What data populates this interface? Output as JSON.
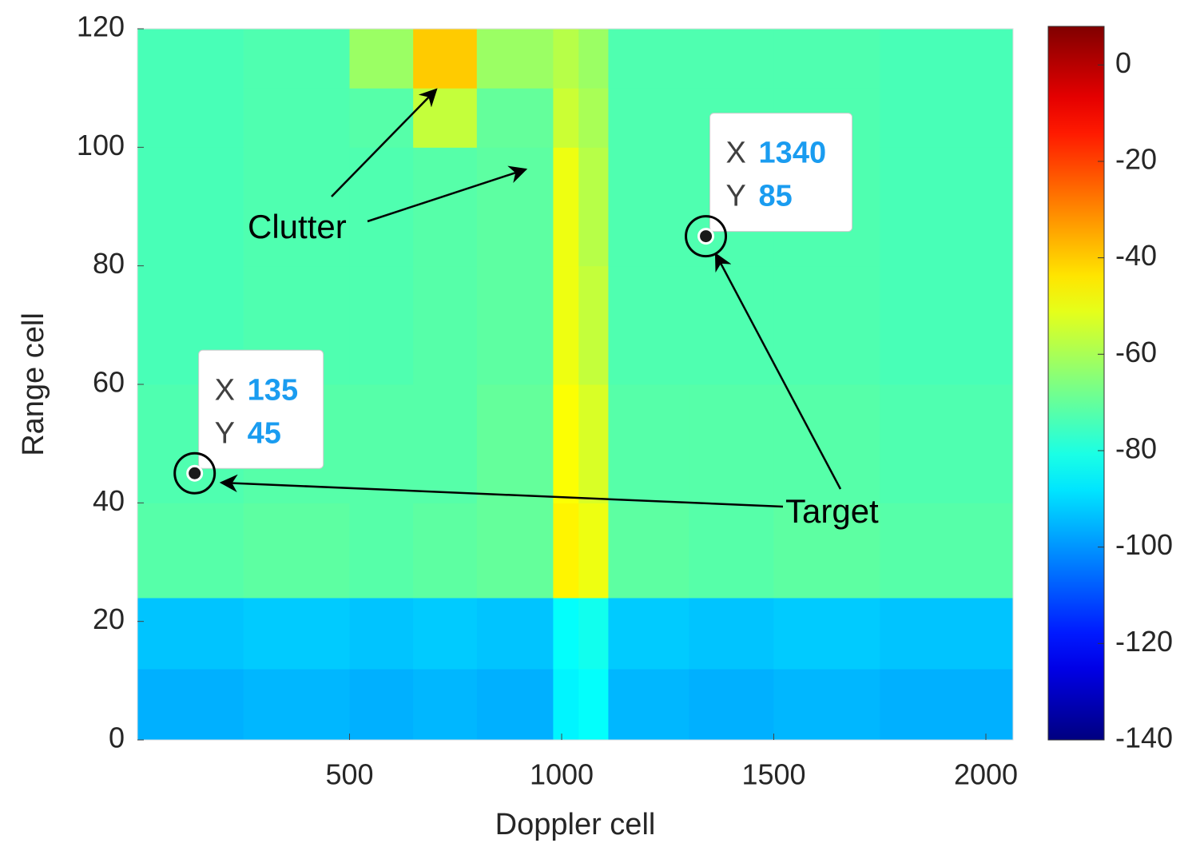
{
  "chart_data": {
    "type": "heatmap",
    "x_label": "Doppler cell",
    "y_label": "Range cell",
    "xlim": [
      0,
      2064
    ],
    "ylim": [
      0,
      120
    ],
    "xticks": [
      500,
      1000,
      1500,
      2000
    ],
    "yticks": [
      0,
      20,
      40,
      60,
      80,
      100,
      120
    ],
    "x_edges": [
      0,
      250,
      500,
      650,
      800,
      980,
      1040,
      1110,
      1300,
      1500,
      1750,
      2064
    ],
    "y_edges": [
      0,
      12,
      24,
      40,
      60,
      80,
      100,
      110,
      120
    ],
    "z": [
      [
        -96,
        -95,
        -96,
        -95,
        -96,
        -86,
        -84,
        -95,
        -96,
        -95,
        -96
      ],
      [
        -93,
        -92,
        -93,
        -92,
        -93,
        -84,
        -82,
        -92,
        -93,
        -92,
        -93
      ],
      [
        -72,
        -71,
        -72,
        -71,
        -70,
        -46,
        -50,
        -71,
        -72,
        -71,
        -72
      ],
      [
        -73,
        -72,
        -72,
        -72,
        -70,
        -48,
        -53,
        -72,
        -72,
        -72,
        -73
      ],
      [
        -74,
        -73,
        -73,
        -72,
        -71,
        -50,
        -56,
        -73,
        -73,
        -73,
        -74
      ],
      [
        -74,
        -73,
        -73,
        -72,
        -71,
        -50,
        -58,
        -73,
        -73,
        -73,
        -74
      ],
      [
        -74,
        -73,
        -72,
        -56,
        -70,
        -55,
        -60,
        -73,
        -73,
        -73,
        -74
      ],
      [
        -74,
        -73,
        -62,
        -40,
        -62,
        -58,
        -62,
        -73,
        -73,
        -73,
        -74
      ]
    ],
    "colormap": "jet",
    "clim": [
      -140,
      8
    ],
    "cticks": [
      -140,
      -120,
      -100,
      -80,
      -60,
      -40,
      -20,
      0
    ],
    "datatips": [
      {
        "x_label": "X",
        "x": 135,
        "y_label": "Y",
        "y": 45
      },
      {
        "x_label": "X",
        "x": 1340,
        "y_label": "Y",
        "y": 85
      }
    ],
    "annotations": [
      "Clutter",
      "Target"
    ]
  }
}
